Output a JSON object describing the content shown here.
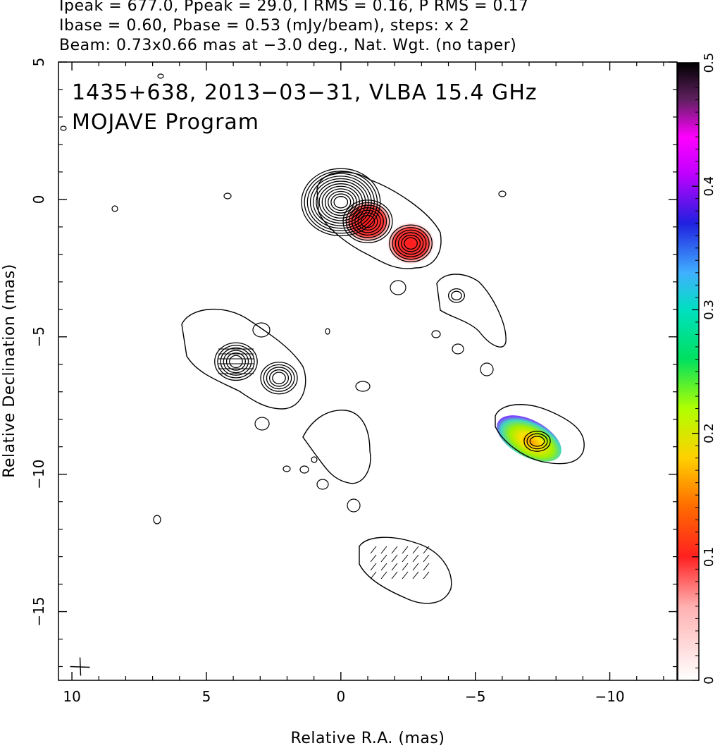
{
  "header": {
    "line1": "Ipeak = 677.0, Ppeak = 29.0, I RMS = 0.16, P RMS = 0.17",
    "line2": "Ibase = 0.60, Pbase = 0.53 (mJy/beam), steps: x 2",
    "line3": "Beam: 0.73x0.66 mas at −3.0 deg., Nat. Wgt. (no taper)"
  },
  "chart_data": {
    "type": "contour",
    "source_label": "1435+638, 2013−03−31, VLBA 15.4 GHz",
    "program_label": "MOJAVE Program",
    "xlabel": "Relative R.A. (mas)",
    "ylabel": "Relative Declination (mas)",
    "xlim": [
      10.5,
      -12.5
    ],
    "ylim": [
      -17.5,
      5.0
    ],
    "x_ticks": [
      10,
      5,
      0,
      -5,
      -10
    ],
    "x_tick_labels": [
      "10",
      "5",
      "0",
      "−5",
      "−10"
    ],
    "y_ticks": [
      5,
      0,
      -5,
      -10,
      -15
    ],
    "y_tick_labels": [
      "5",
      "0",
      "−5",
      "−10",
      "−15"
    ],
    "colorbar": {
      "range": [
        0,
        0.5
      ],
      "ticks": [
        0,
        0.1,
        0.2,
        0.3,
        0.4,
        0.5
      ],
      "tick_labels": [
        "0",
        "0.1",
        "0.2",
        "0.3",
        "0.4",
        "0.5"
      ],
      "colors": [
        "#ffffff",
        "#ff2020",
        "#ff8c00",
        "#ffff00",
        "#a0ff00",
        "#00e05a",
        "#00e8e0",
        "#3080ff",
        "#3010d0",
        "#ff00ff",
        "#500050",
        "#000000"
      ]
    },
    "components": [
      {
        "x": 0.0,
        "y": -0.1,
        "levels": 12,
        "rx": 0.55,
        "ry": 0.45
      },
      {
        "x": -1.0,
        "y": -0.8,
        "levels": 7,
        "rx": 0.55,
        "ry": 0.5
      },
      {
        "x": -2.6,
        "y": -1.6,
        "levels": 6,
        "rx": 0.5,
        "ry": 0.45
      },
      {
        "x": 3.9,
        "y": -5.9,
        "levels": 6,
        "rx": 0.5,
        "ry": 0.5
      },
      {
        "x": 2.3,
        "y": -6.5,
        "levels": 5,
        "rx": 0.5,
        "ry": 0.45
      },
      {
        "x": -4.3,
        "y": -3.5,
        "levels": 2,
        "rx": 0.3,
        "ry": 0.25
      },
      {
        "x": -7.3,
        "y": -8.8,
        "levels": 3,
        "rx": 0.6,
        "ry": 0.35
      }
    ],
    "polarization_patches": [
      {
        "x": -1.0,
        "y": -0.8,
        "value": 0.1
      },
      {
        "x": -2.6,
        "y": -1.6,
        "value": 0.1
      },
      {
        "x": -7.0,
        "y": -8.7,
        "value": 0.2
      }
    ],
    "beam": {
      "major_mas": 0.73,
      "minor_mas": 0.66,
      "pa_deg": -3.0
    }
  }
}
